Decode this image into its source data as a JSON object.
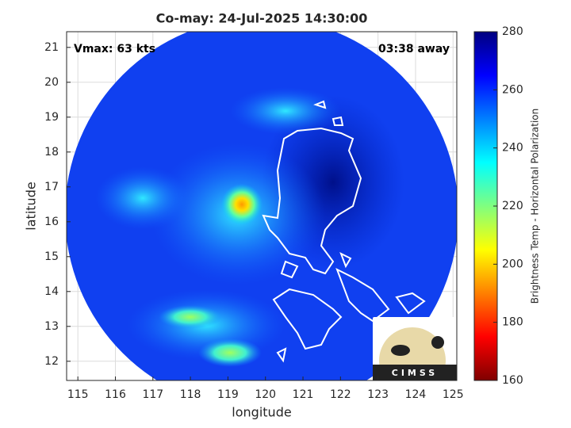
{
  "chart_data": {
    "type": "map",
    "title": "Co-may: 24-Jul-2025 14:30:00",
    "annotations": [
      "Vmax: 63 kts",
      "03:38 away"
    ],
    "xlabel": "longitude",
    "ylabel": "latitude",
    "xlim": [
      114.7,
      125.1
    ],
    "xticks": [
      115,
      116,
      117,
      118,
      119,
      120,
      121,
      122,
      123,
      124,
      125
    ],
    "ylim": [
      11.45,
      21.45
    ],
    "yticks": [
      12,
      13,
      14,
      15,
      16,
      17,
      18,
      19,
      20,
      21
    ],
    "grid": true,
    "colorbar": {
      "label": "Brightness Temp - Horizontal Polarization",
      "lim": [
        160,
        280
      ],
      "ticks": [
        160,
        180,
        200,
        220,
        240,
        260,
        280
      ],
      "colormap": "jet"
    },
    "logo": "CIMSS"
  }
}
